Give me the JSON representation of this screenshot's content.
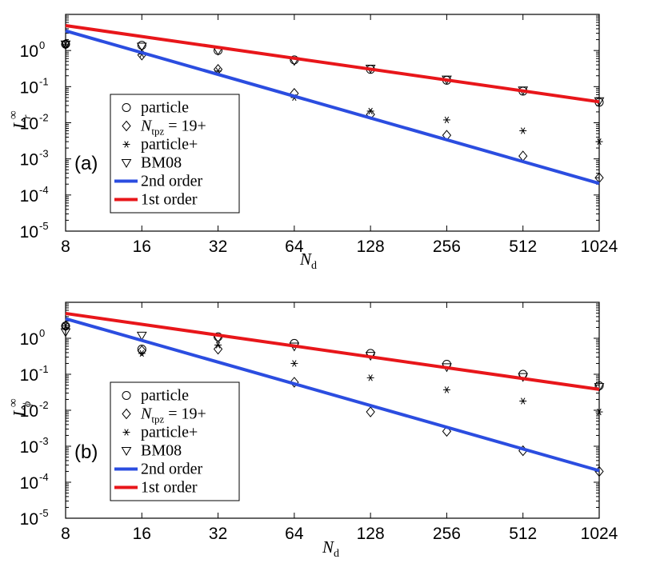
{
  "chart_data": [
    {
      "type": "line",
      "panel_label": "(a)",
      "xlabel_main": "N",
      "xlabel_sub": "d",
      "ylabel_main": "L",
      "ylabel_sub": "r",
      "ylabel_sup": "∞",
      "x_scale": "log2",
      "y_scale": "log10",
      "xlim": [
        8,
        1024
      ],
      "ylim": [
        1e-05,
        10
      ],
      "x_ticks": [
        8,
        16,
        32,
        64,
        128,
        256,
        512,
        1024
      ],
      "x_tick_labels": [
        "8",
        "16",
        "32",
        "64",
        "128",
        "256",
        "512",
        "1024"
      ],
      "y_ticks": [
        {
          "base": "10",
          "exp": "0",
          "value": 1
        },
        {
          "base": "10",
          "exp": "-1",
          "value": 0.1
        },
        {
          "base": "10",
          "exp": "-2",
          "value": 0.01
        },
        {
          "base": "10",
          "exp": "-3",
          "value": 0.001
        },
        {
          "base": "10",
          "exp": "-4",
          "value": 0.0001
        },
        {
          "base": "10",
          "exp": "-5",
          "value": 1e-05
        }
      ],
      "legend_position": "lower-left",
      "series": [
        {
          "name": "particle",
          "marker": "circle",
          "x": [
            8,
            16,
            32,
            64,
            128,
            256,
            512,
            1024
          ],
          "values": [
            1.5,
            1.4,
            1.0,
            0.55,
            0.3,
            0.15,
            0.075,
            0.037
          ]
        },
        {
          "name_main": "N",
          "name_sub": "tpz",
          "name_rest": " = 19+",
          "name": "N_tpz = 19+",
          "marker": "diamond",
          "x": [
            8,
            16,
            32,
            64,
            128,
            256,
            512,
            1024
          ],
          "values": [
            1.5,
            0.75,
            0.3,
            0.065,
            0.017,
            0.0045,
            0.0012,
            0.0003
          ]
        },
        {
          "name": "particle+",
          "marker": "asterisk",
          "x": [
            8,
            16,
            32,
            64,
            128,
            256,
            512,
            1024
          ],
          "values": [
            1.5,
            0.8,
            0.27,
            0.05,
            0.021,
            0.012,
            0.006,
            0.003
          ]
        },
        {
          "name": "BM08",
          "marker": "triangle-down",
          "x": [
            8,
            16,
            32,
            64,
            128,
            256,
            512,
            1024
          ],
          "values": [
            1.5,
            1.3,
            1.0,
            0.52,
            0.32,
            0.16,
            0.08,
            0.04
          ]
        },
        {
          "name": "2nd order",
          "line": true,
          "color": "#2b4de0",
          "x": [
            8,
            1024
          ],
          "values": [
            3.5,
            0.00021
          ]
        },
        {
          "name": "1st order",
          "line": true,
          "color": "#e8161a",
          "x": [
            8,
            1024
          ],
          "values": [
            4.9,
            0.038
          ]
        }
      ]
    },
    {
      "type": "line",
      "panel_label": "(b)",
      "xlabel_main": "N",
      "xlabel_sub": "d",
      "ylabel_main": "L",
      "ylabel_sub": "ϕ",
      "ylabel_sup": "∞",
      "x_scale": "log2",
      "y_scale": "log10",
      "xlim": [
        8,
        1024
      ],
      "ylim": [
        1e-05,
        10
      ],
      "x_ticks": [
        8,
        16,
        32,
        64,
        128,
        256,
        512,
        1024
      ],
      "x_tick_labels": [
        "8",
        "16",
        "32",
        "64",
        "128",
        "256",
        "512",
        "1024"
      ],
      "y_ticks": [
        {
          "base": "10",
          "exp": "0",
          "value": 1
        },
        {
          "base": "10",
          "exp": "-1",
          "value": 0.1
        },
        {
          "base": "10",
          "exp": "-2",
          "value": 0.01
        },
        {
          "base": "10",
          "exp": "-3",
          "value": 0.001
        },
        {
          "base": "10",
          "exp": "-4",
          "value": 0.0001
        },
        {
          "base": "10",
          "exp": "-5",
          "value": 1e-05
        }
      ],
      "legend_position": "lower-left",
      "series": [
        {
          "name": "particle",
          "marker": "circle",
          "x": [
            8,
            16,
            32,
            64,
            128,
            256,
            512,
            1024
          ],
          "values": [
            2.2,
            0.5,
            1.1,
            0.72,
            0.38,
            0.19,
            0.1,
            0.048
          ]
        },
        {
          "name_main": "N",
          "name_sub": "tpz",
          "name_rest": " = 19+",
          "name": "N_tpz = 19+",
          "marker": "diamond",
          "x": [
            8,
            16,
            32,
            64,
            128,
            256,
            512,
            1024
          ],
          "values": [
            2.2,
            0.45,
            0.5,
            0.06,
            0.009,
            0.0026,
            0.00075,
            0.0002
          ]
        },
        {
          "name": "particle+",
          "marker": "asterisk",
          "x": [
            8,
            16,
            32,
            64,
            128,
            256,
            512,
            1024
          ],
          "values": [
            2.2,
            0.38,
            0.65,
            0.2,
            0.08,
            0.037,
            0.018,
            0.009
          ]
        },
        {
          "name": "BM08",
          "marker": "triangle-down",
          "x": [
            8,
            16,
            32,
            64,
            128,
            256,
            512,
            1024
          ],
          "values": [
            1.5,
            1.2,
            1.0,
            0.6,
            0.33,
            0.16,
            0.085,
            0.045
          ]
        },
        {
          "name": "2nd order",
          "line": true,
          "color": "#2b4de0",
          "x": [
            8,
            1024
          ],
          "values": [
            3.5,
            0.00021
          ]
        },
        {
          "name": "1st order",
          "line": true,
          "color": "#e8161a",
          "x": [
            8,
            1024
          ],
          "values": [
            4.9,
            0.038
          ]
        }
      ]
    }
  ]
}
